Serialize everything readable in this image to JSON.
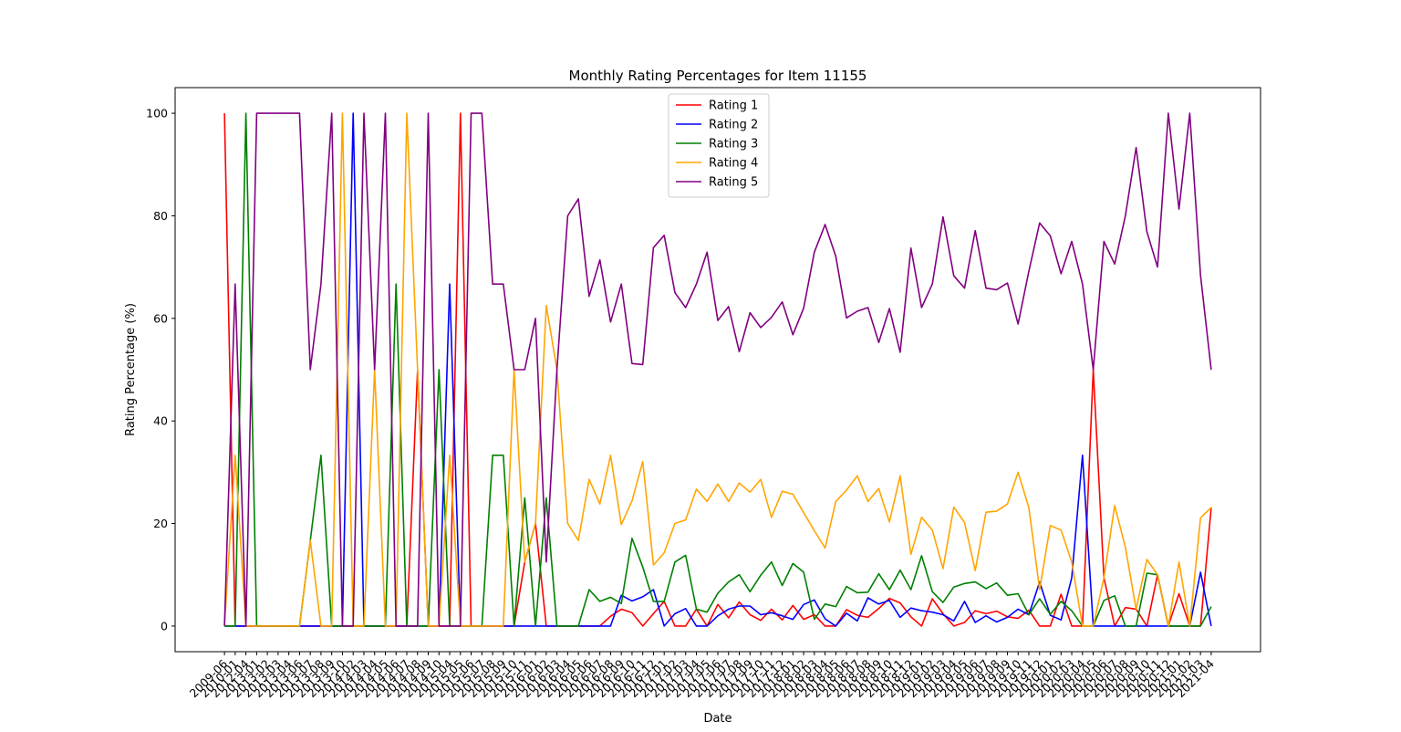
{
  "chart_data": {
    "type": "line",
    "title": "Monthly Rating Percentages for Item 11155",
    "x_label": "Date",
    "y_label": "Rating Percentage (%)",
    "categories": [
      "2009-06",
      "2010-01",
      "2012-04",
      "2013-01",
      "2013-02",
      "2013-03",
      "2013-04",
      "2013-06",
      "2013-07",
      "2013-08",
      "2013-09",
      "2013-10",
      "2014-02",
      "2014-03",
      "2014-04",
      "2014-05",
      "2014-06",
      "2014-07",
      "2014-08",
      "2014-09",
      "2014-10",
      "2015-04",
      "2015-05",
      "2015-06",
      "2015-07",
      "2015-08",
      "2015-09",
      "2015-10",
      "2015-11",
      "2016-01",
      "2016-02",
      "2016-03",
      "2016-04",
      "2016-05",
      "2016-06",
      "2016-07",
      "2016-08",
      "2016-09",
      "2016-10",
      "2016-11",
      "2016-12",
      "2017-01",
      "2017-02",
      "2017-03",
      "2017-04",
      "2017-05",
      "2017-06",
      "2017-07",
      "2017-08",
      "2017-09",
      "2017-10",
      "2017-11",
      "2017-12",
      "2018-01",
      "2018-02",
      "2018-03",
      "2018-04",
      "2018-05",
      "2018-06",
      "2018-07",
      "2018-08",
      "2018-09",
      "2018-10",
      "2018-11",
      "2018-12",
      "2019-01",
      "2019-02",
      "2019-03",
      "2019-04",
      "2019-05",
      "2019-06",
      "2019-07",
      "2019-08",
      "2019-09",
      "2019-10",
      "2019-11",
      "2019-12",
      "2020-01",
      "2020-02",
      "2020-03",
      "2020-04",
      "2020-05",
      "2020-06",
      "2020-07",
      "2020-08",
      "2020-09",
      "2020-10",
      "2020-11",
      "2020-12",
      "2021-01",
      "2021-02",
      "2021-03",
      "2021-04"
    ],
    "series": [
      {
        "name": "Rating 1",
        "color": "red",
        "values": [
          100,
          0,
          0,
          0,
          0,
          0,
          0,
          0,
          0,
          0,
          0,
          0,
          0,
          0,
          0,
          0,
          0,
          0,
          50,
          0,
          0,
          0,
          100,
          0,
          0,
          0,
          0,
          0,
          12.5,
          20,
          0,
          0,
          0,
          0,
          0,
          0,
          1.9,
          3.3,
          2.6,
          0,
          2.4,
          4.8,
          0,
          0,
          3.3,
          0,
          4.2,
          1.6,
          4.7,
          2.2,
          1.1,
          3.3,
          1.2,
          4,
          1.3,
          2.2,
          0,
          0,
          3.2,
          2.1,
          1.7,
          3.4,
          5.4,
          4.5,
          1.8,
          0,
          5.3,
          2.4,
          0,
          0.7,
          3,
          2.4,
          2.9,
          1.8,
          1.5,
          3.1,
          0,
          0,
          6.2,
          0,
          0,
          50,
          9.4,
          0,
          3.6,
          3.3,
          0,
          10,
          0,
          6.3,
          0,
          0,
          23.1
        ]
      },
      {
        "name": "Rating 2",
        "color": "blue",
        "values": [
          0,
          0,
          0,
          0,
          0,
          0,
          0,
          0,
          0,
          0,
          0,
          0,
          100,
          0,
          0,
          0,
          0,
          0,
          0,
          0,
          0,
          66.7,
          0,
          0,
          0,
          0,
          0,
          0,
          0,
          0,
          0,
          0,
          0,
          0,
          0,
          0,
          0,
          6,
          4.9,
          5.7,
          7.1,
          0,
          2.4,
          3.4,
          0,
          0,
          2,
          3.3,
          3.9,
          3.9,
          2.2,
          2.6,
          2,
          1.3,
          4.2,
          5.1,
          1.4,
          0,
          2.5,
          1,
          5.5,
          4.3,
          5,
          1.7,
          3.5,
          3,
          2.7,
          2.2,
          1,
          4.8,
          0.7,
          2,
          0.8,
          1.7,
          3.3,
          2.2,
          8.6,
          2.1,
          1.2,
          9.4,
          33.3,
          0,
          0,
          0,
          0,
          0,
          0,
          0,
          0,
          0,
          0,
          10.5,
          0
        ]
      },
      {
        "name": "Rating 3",
        "color": "green",
        "values": [
          0,
          0,
          100,
          0,
          0,
          0,
          0,
          0,
          16.7,
          33.3,
          0,
          0,
          0,
          0,
          0,
          0,
          66.7,
          0,
          0,
          0,
          50,
          0,
          0,
          0,
          0,
          33.3,
          33.3,
          0,
          25,
          0,
          25,
          0,
          0,
          0,
          7.1,
          4.8,
          5.6,
          4.4,
          17.1,
          11.5,
          4.8,
          4.8,
          12.5,
          13.8,
          3.3,
          2.7,
          6.4,
          8.6,
          10,
          6.7,
          9.9,
          12.5,
          7.9,
          12.2,
          10.5,
          1.3,
          4.3,
          3.8,
          7.7,
          6.5,
          6.6,
          10.2,
          7.1,
          10.9,
          7.1,
          13.7,
          6.7,
          4.6,
          7.6,
          8.3,
          8.6,
          7.3,
          8.4,
          6,
          6.3,
          2.2,
          5.3,
          2.3,
          4.8,
          3,
          0,
          0,
          5,
          5.9,
          0,
          0,
          10.3,
          10,
          0,
          0,
          0,
          0,
          3.8
        ]
      },
      {
        "name": "Rating 4",
        "color": "orange",
        "values": [
          0,
          33.3,
          0,
          0,
          0,
          0,
          0,
          0,
          16.7,
          0,
          0,
          100,
          0,
          0,
          50,
          0,
          0,
          100,
          50,
          0,
          0,
          33.3,
          0,
          0,
          0,
          0,
          0,
          50,
          12.5,
          20,
          62.5,
          50,
          20,
          16.7,
          28.6,
          23.8,
          33.3,
          19.8,
          24.4,
          32.1,
          11.9,
          14.3,
          20,
          20.7,
          26.7,
          24.3,
          27.7,
          24.3,
          27.9,
          26.1,
          28.6,
          21.2,
          26.3,
          25.7,
          22.1,
          18.6,
          15.2,
          24.3,
          26.5,
          29.3,
          24.3,
          26.8,
          20.3,
          29.3,
          14,
          21.2,
          18.7,
          11.2,
          23.2,
          20.2,
          10.8,
          22.2,
          22.4,
          23.8,
          30,
          23.1,
          7.1,
          19.6,
          18.7,
          12.5,
          0,
          0,
          9.4,
          23.5,
          15.4,
          3.3,
          13,
          10,
          0,
          12.5,
          0,
          21.1,
          23.1
        ]
      },
      {
        "name": "Rating 5",
        "color": "purple",
        "values": [
          0,
          66.7,
          0,
          100,
          100,
          100,
          100,
          100,
          50,
          66.7,
          100,
          0,
          0,
          100,
          50,
          100,
          0,
          0,
          0,
          100,
          0,
          0,
          0,
          100,
          100,
          66.7,
          66.7,
          50,
          50,
          60,
          12.5,
          50,
          80,
          83.3,
          64.3,
          71.4,
          59.3,
          66.7,
          51.2,
          51,
          73.8,
          76.2,
          65,
          62.1,
          66.7,
          72.9,
          59.6,
          62.3,
          53.5,
          61.1,
          58.2,
          60.2,
          63.2,
          56.8,
          62,
          72.9,
          78.3,
          72.1,
          60.1,
          61.4,
          62.1,
          55.3,
          61.9,
          53.4,
          73.7,
          62.1,
          66.7,
          79.8,
          68.3,
          65.9,
          77.1,
          65.9,
          65.6,
          66.9,
          58.9,
          69.2,
          78.6,
          76.1,
          68.7,
          75,
          66.7,
          50,
          75,
          70.6,
          80,
          93.3,
          76.9,
          70,
          100,
          81.3,
          100,
          68.4,
          50
        ]
      }
    ],
    "ylim": [
      -5,
      105
    ],
    "yticks": [
      0,
      20,
      40,
      60,
      80,
      100
    ],
    "legend": "upper center"
  }
}
